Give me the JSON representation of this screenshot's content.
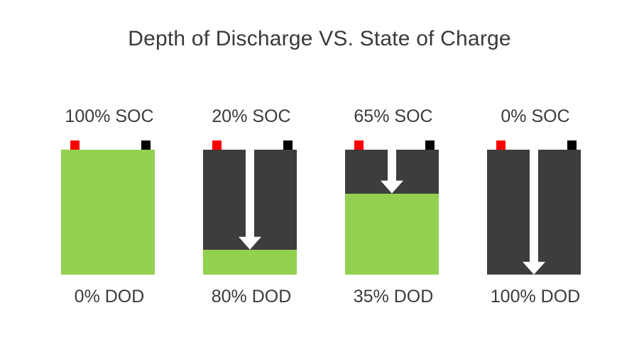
{
  "title": "Depth of Discharge VS. State of Charge",
  "colors": {
    "charge": "#92d050",
    "empty": "#3d3d3d",
    "positive_terminal": "#ff0000",
    "negative_terminal": "#000000",
    "arrow": "#ffffff"
  },
  "batteries": [
    {
      "soc_label": "100% SOC",
      "dod_label": "0% DOD",
      "soc": 100,
      "dod": 0
    },
    {
      "soc_label": "20% SOC",
      "dod_label": "80% DOD",
      "soc": 20,
      "dod": 80
    },
    {
      "soc_label": "65% SOC",
      "dod_label": "35% DOD",
      "soc": 65,
      "dod": 35
    },
    {
      "soc_label": "0% SOC",
      "dod_label": "100% DOD",
      "soc": 0,
      "dod": 100
    }
  ]
}
